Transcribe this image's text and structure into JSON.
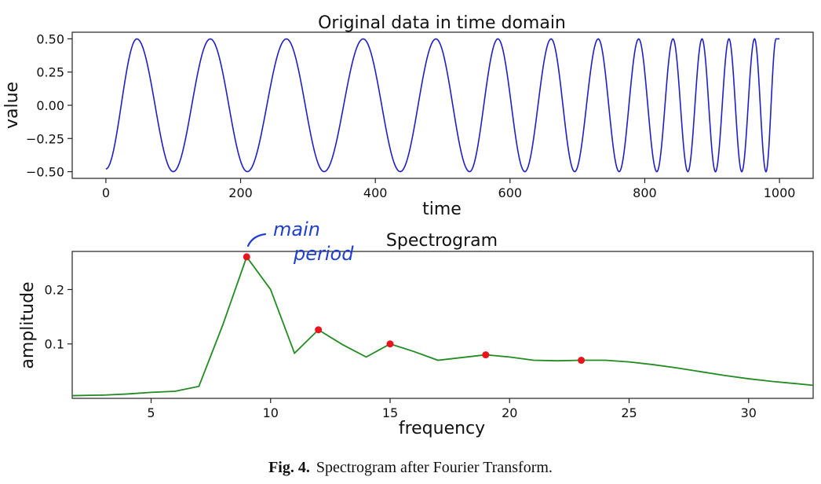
{
  "caption": {
    "label": "Fig. 4.",
    "text": "Spectrogram after Fourier Transform."
  },
  "chart_data": [
    {
      "type": "line",
      "title": "Original data in time domain",
      "xlabel": "time",
      "ylabel": "value",
      "xlim": [
        -50,
        1050
      ],
      "ylim": [
        -0.55,
        0.55
      ],
      "xticks": [
        "0",
        "200",
        "400",
        "600",
        "800",
        "1000"
      ],
      "xtick_values": [
        0,
        200,
        400,
        600,
        800,
        1000
      ],
      "yticks": [
        "0.50",
        "0.25",
        "0.00",
        "−0.25",
        "−0.50"
      ],
      "ytick_values": [
        0.5,
        0.25,
        0.0,
        -0.25,
        -0.5
      ],
      "series": [
        {
          "color": "#1f1fc8",
          "function": "chirp sinusoid, amplitude 0.5, period decreasing from ~110 to ~35 over time 0–1000",
          "x": [
            0,
            46,
            100,
            155,
            210,
            268,
            324,
            382,
            437,
            490,
            540,
            582,
            622,
            661,
            696,
            731,
            762,
            791,
            818,
            842,
            864,
            885,
            905,
            925,
            944,
            963,
            980,
            995,
            1000
          ],
          "y": [
            -0.48,
            0.5,
            -0.5,
            0.5,
            -0.5,
            0.5,
            -0.5,
            0.5,
            -0.5,
            0.5,
            -0.5,
            0.5,
            -0.5,
            0.5,
            -0.5,
            0.5,
            -0.5,
            0.5,
            -0.5,
            0.5,
            -0.5,
            0.5,
            -0.5,
            0.5,
            -0.5,
            0.5,
            -0.5,
            0.5,
            0.5
          ]
        }
      ],
      "grid": false
    },
    {
      "type": "line",
      "title": "Spectrogram",
      "xlabel": "frequency",
      "ylabel": "amplitude",
      "xlim": [
        1.7,
        32.7
      ],
      "ylim": [
        0.0,
        0.27
      ],
      "xticks": [
        "5",
        "10",
        "15",
        "20",
        "25",
        "30"
      ],
      "xtick_values": [
        5,
        10,
        15,
        20,
        25,
        30
      ],
      "yticks": [
        "0.2",
        "0.1"
      ],
      "ytick_values": [
        0.2,
        0.1
      ],
      "series": [
        {
          "color": "#228b22",
          "x": [
            1.7,
            3,
            4,
            5,
            6,
            7,
            8,
            9,
            10,
            11,
            12,
            13,
            14,
            15,
            16,
            17,
            18,
            19,
            20,
            21,
            22,
            23,
            24,
            25,
            26,
            27,
            28,
            29,
            30,
            31,
            32,
            32.7
          ],
          "y": [
            0.005,
            0.006,
            0.008,
            0.011,
            0.013,
            0.022,
            0.135,
            0.26,
            0.2,
            0.083,
            0.126,
            0.099,
            0.076,
            0.1,
            0.086,
            0.07,
            0.075,
            0.08,
            0.076,
            0.07,
            0.069,
            0.07,
            0.07,
            0.067,
            0.062,
            0.056,
            0.049,
            0.042,
            0.036,
            0.031,
            0.027,
            0.024
          ]
        }
      ],
      "highlighted_points": {
        "color": "#e8141e",
        "x": [
          9,
          12,
          15,
          19,
          23
        ],
        "y": [
          0.26,
          0.126,
          0.1,
          0.08,
          0.07
        ]
      },
      "annotation": {
        "text_line1": "main",
        "text_line2": "period",
        "color": "#1f3fd0",
        "points_to_x": 9
      },
      "grid": false
    }
  ]
}
